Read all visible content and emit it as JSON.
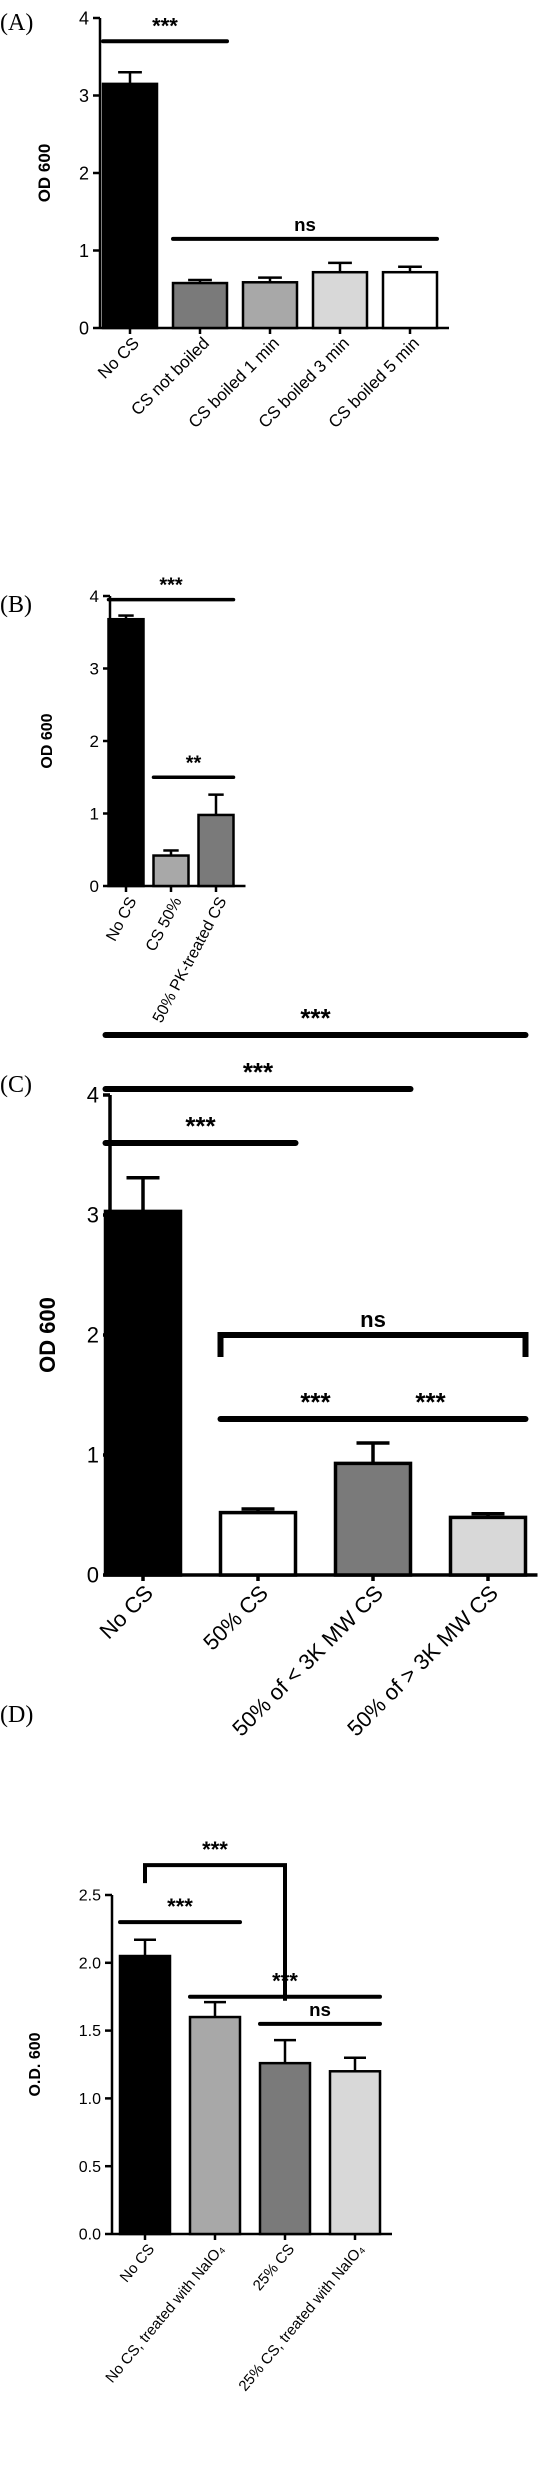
{
  "chart_data": [
    {
      "type": "bar",
      "panel_label": "(A)",
      "ylabel": "OD 600",
      "ylim": [
        0,
        4
      ],
      "yticks": [
        "0",
        "1",
        "2",
        "3",
        "4"
      ],
      "categories": [
        "No CS",
        "CS not boiled",
        "CS boiled 1 min",
        "CS boiled 3 min",
        "CS boiled 5 min"
      ],
      "values": [
        3.15,
        0.58,
        0.59,
        0.72,
        0.72
      ],
      "errors": [
        0.15,
        0.04,
        0.06,
        0.12,
        0.07
      ],
      "colors": [
        "#000000",
        "#7a7a7a",
        "#a8a8a8",
        "#d8d8d8",
        "#ffffff"
      ],
      "grid": false,
      "annotations": [
        {
          "text": "***",
          "from": 0,
          "to": 1,
          "y": 3.7
        },
        {
          "text": "ns",
          "from": 1,
          "to": 4,
          "y": 1.15
        }
      ]
    },
    {
      "type": "bar",
      "panel_label": "(B)",
      "ylabel": "OD 600",
      "ylim": [
        0,
        4
      ],
      "yticks": [
        "0",
        "1",
        "2",
        "3",
        "4"
      ],
      "categories": [
        "No CS",
        "CS 50%",
        "50% PK-treated CS"
      ],
      "values": [
        3.68,
        0.42,
        0.98
      ],
      "errors": [
        0.05,
        0.07,
        0.28
      ],
      "colors": [
        "#000000",
        "#a8a8a8",
        "#7a7a7a"
      ],
      "grid": false,
      "annotations": [
        {
          "text": "***",
          "from": 0,
          "to": 2,
          "y": 3.95
        },
        {
          "text": "**",
          "from": 1,
          "to": 2,
          "y": 1.5
        }
      ]
    },
    {
      "type": "bar",
      "panel_label": "(C)",
      "ylabel": "OD 600",
      "ylim": [
        0,
        4
      ],
      "yticks": [
        "0",
        "1",
        "2",
        "3",
        "4"
      ],
      "categories": [
        "No CS",
        "50% CS",
        "50% of < 3K MW CS",
        "50% of > 3K MW CS"
      ],
      "values": [
        3.03,
        0.52,
        0.93,
        0.48
      ],
      "errors": [
        0.28,
        0.03,
        0.17,
        0.03
      ],
      "colors": [
        "#000000",
        "#ffffff",
        "#7a7a7a",
        "#d8d8d8"
      ],
      "grid": false,
      "annotations": [
        {
          "text": "***",
          "from": 0,
          "to": 1,
          "y": 3.6,
          "style": "line"
        },
        {
          "text": "***",
          "from": 0,
          "to": 2,
          "y": 4.05,
          "style": "line"
        },
        {
          "text": "***",
          "from": 0,
          "to": 3,
          "y": 4.5,
          "style": "line"
        },
        {
          "text": "***",
          "from": 1,
          "to": 2,
          "y": 1.3,
          "style": "line"
        },
        {
          "text": "***",
          "from": 2,
          "to": 3,
          "y": 1.3,
          "style": "line"
        },
        {
          "text": "ns",
          "from": 1,
          "to": 3,
          "y": 2.0,
          "style": "bracket"
        }
      ]
    },
    {
      "type": "bar",
      "panel_label": "(D)",
      "ylabel": "O.D. 600",
      "ylim": [
        0,
        2.5
      ],
      "yticks": [
        "0.0",
        "0.5",
        "1.0",
        "1.5",
        "2.0",
        "2.5"
      ],
      "categories": [
        "No CS",
        "No CS, treated with NaIO₄",
        "25% CS",
        "25% CS, treated with NaIO₄"
      ],
      "values": [
        2.05,
        1.6,
        1.26,
        1.2
      ],
      "errors": [
        0.12,
        0.11,
        0.17,
        0.1
      ],
      "colors": [
        "#000000",
        "#a8a8a8",
        "#7a7a7a",
        "#d8d8d8"
      ],
      "grid": false,
      "annotations": [
        {
          "text": "***",
          "from": 0,
          "to": 1,
          "y": 2.3,
          "style": "line"
        },
        {
          "text": "***",
          "from": 0,
          "to": 2,
          "y": 2.72,
          "style": "bracket-down"
        },
        {
          "text": "***",
          "from": 1,
          "to": 3,
          "y": 1.75,
          "style": "line"
        },
        {
          "text": "ns",
          "from": 2,
          "to": 3,
          "y": 1.55,
          "style": "line"
        }
      ]
    }
  ]
}
